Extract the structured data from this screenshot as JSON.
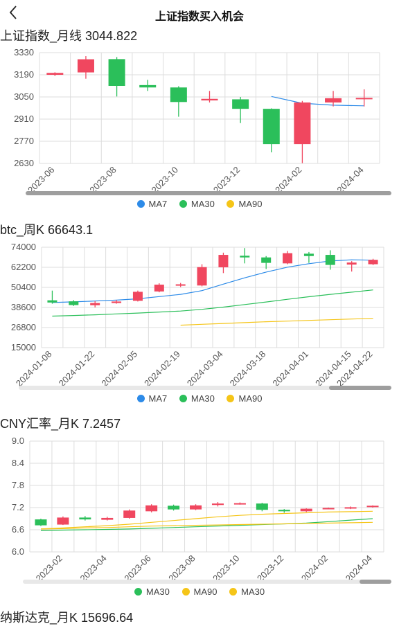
{
  "header": {
    "title": "上证指数买入机会"
  },
  "icons": {
    "back": "chevron-left-icon"
  },
  "colors": {
    "up": "#f0475f",
    "down": "#2bbf5a",
    "ma_blue": "#2d8be8",
    "ma_green": "#2bbf5a",
    "ma_yellow": "#f5c518",
    "grid": "#dddddd",
    "axis_text": "#555555"
  },
  "charts": [
    {
      "title": "上证指数_月线 3044.822",
      "legend": [
        {
          "name": "MA7",
          "color": "#2d8be8"
        },
        {
          "name": "MA30",
          "color": "#2bbf5a"
        },
        {
          "name": "MA90",
          "color": "#f5c518"
        }
      ]
    },
    {
      "title": "btc_周K 66643.1",
      "legend": [
        {
          "name": "MA7",
          "color": "#2d8be8"
        },
        {
          "name": "MA30",
          "color": "#2bbf5a"
        },
        {
          "name": "MA90",
          "color": "#f5c518"
        }
      ]
    },
    {
      "title": "CNY汇率_月K 7.2457",
      "legend": [
        {
          "name": "MA30",
          "color": "#2bbf5a"
        },
        {
          "name": "MA90",
          "color": "#f5c518"
        },
        {
          "name": "MA30",
          "color": "#f5c518"
        }
      ]
    },
    {
      "title": "纳斯达克_月K 15696.64"
    }
  ],
  "chart_data": [
    {
      "type": "candlestick",
      "title": "上证指数_月线 3044.822",
      "ylim": [
        2630,
        3330
      ],
      "yticks": [
        "3330",
        "3190",
        "3050",
        "2910",
        "2770",
        "2630"
      ],
      "xticks": [
        "2023-06",
        "2023-08",
        "2023-10",
        "2023-12",
        "2024-02",
        "2024-04"
      ],
      "candles": [
        {
          "o": 3190,
          "c": 3202,
          "h": 3206,
          "l": 3182
        },
        {
          "o": 3205,
          "c": 3288,
          "h": 3308,
          "l": 3165
        },
        {
          "o": 3289,
          "c": 3120,
          "h": 3302,
          "l": 3053
        },
        {
          "o": 3125,
          "c": 3110,
          "h": 3158,
          "l": 3088
        },
        {
          "o": 3110,
          "c": 3018,
          "h": 3118,
          "l": 2925
        },
        {
          "o": 3028,
          "c": 3038,
          "h": 3088,
          "l": 3015
        },
        {
          "o": 3035,
          "c": 2975,
          "h": 3050,
          "l": 2885
        },
        {
          "o": 2975,
          "c": 2752,
          "h": 2978,
          "l": 2700
        },
        {
          "o": 2752,
          "c": 3015,
          "h": 3025,
          "l": 2632
        },
        {
          "o": 3015,
          "c": 3042,
          "h": 3088,
          "l": 2990
        },
        {
          "o": 3044,
          "c": 3044,
          "h": 3098,
          "l": 2990
        }
      ],
      "series": [
        {
          "name": "MA7",
          "values": [
            null,
            null,
            null,
            null,
            null,
            null,
            null,
            3053,
            3010,
            2998,
            2994
          ]
        }
      ]
    },
    {
      "type": "candlestick",
      "title": "btc_周K 66643.1",
      "ylim": [
        15000,
        74000
      ],
      "yticks": [
        "74000",
        "62200",
        "50400",
        "38600",
        "26800",
        "15000"
      ],
      "xticks": [
        "2024-01-08",
        "2024-01-22",
        "2024-02-05",
        "2024-02-19",
        "2024-03-04",
        "2024-03-18",
        "2024-04-01",
        "2024-04-15",
        "2024-04-22"
      ],
      "candles": [
        {
          "o": 42800,
          "c": 41500,
          "h": 48500,
          "l": 40800
        },
        {
          "o": 42200,
          "c": 40000,
          "h": 42900,
          "l": 39500
        },
        {
          "o": 39900,
          "c": 41200,
          "h": 42300,
          "l": 38600
        },
        {
          "o": 41200,
          "c": 42100,
          "h": 43000,
          "l": 40800
        },
        {
          "o": 42500,
          "c": 47800,
          "h": 48500,
          "l": 42100
        },
        {
          "o": 48000,
          "c": 52000,
          "h": 52800,
          "l": 47500
        },
        {
          "o": 51800,
          "c": 52200,
          "h": 53000,
          "l": 50600
        },
        {
          "o": 51500,
          "c": 62300,
          "h": 64000,
          "l": 51000
        },
        {
          "o": 62200,
          "c": 69500,
          "h": 70800,
          "l": 58800
        },
        {
          "o": 69000,
          "c": 68000,
          "h": 73500,
          "l": 64500
        },
        {
          "o": 68000,
          "c": 64800,
          "h": 68800,
          "l": 61200
        },
        {
          "o": 64500,
          "c": 70500,
          "h": 71800,
          "l": 64000
        },
        {
          "o": 70200,
          "c": 68800,
          "h": 71200,
          "l": 64800
        },
        {
          "o": 69500,
          "c": 63600,
          "h": 72200,
          "l": 60800
        },
        {
          "o": 63800,
          "c": 65000,
          "h": 65800,
          "l": 59700
        },
        {
          "o": 64000,
          "c": 66600,
          "h": 67200,
          "l": 63500
        }
      ],
      "series": [
        {
          "name": "MA7",
          "values": [
            41500,
            41900,
            42400,
            42900,
            43700,
            45000,
            46300,
            48500,
            52300,
            56000,
            59400,
            62300,
            64300,
            65900,
            66600,
            66400
          ]
        },
        {
          "name": "MA30",
          "values": [
            33500,
            33900,
            34300,
            34800,
            35300,
            35900,
            36500,
            37500,
            38800,
            40300,
            41800,
            43400,
            44900,
            46300,
            47600,
            48900
          ]
        },
        {
          "name": "MA90",
          "values": [
            null,
            null,
            null,
            null,
            null,
            null,
            28200,
            28700,
            29200,
            29700,
            30200,
            30600,
            31000,
            31400,
            31800,
            32200
          ]
        }
      ]
    },
    {
      "type": "candlestick",
      "title": "CNY汇率_月K 7.2457",
      "ylim": [
        6.0,
        9.0
      ],
      "yticks": [
        "9.0",
        "8.4",
        "7.8",
        "7.2",
        "6.6",
        "6.0"
      ],
      "xticks": [
        "2023-02",
        "2023-04",
        "2023-06",
        "2023-08",
        "2023-10",
        "2023-12",
        "2024-02",
        "2024-04"
      ],
      "candles": [
        {
          "o": 6.88,
          "c": 6.72,
          "h": 6.9,
          "l": 6.7
        },
        {
          "o": 6.74,
          "c": 6.93,
          "h": 6.96,
          "l": 6.73
        },
        {
          "o": 6.93,
          "c": 6.88,
          "h": 6.97,
          "l": 6.85
        },
        {
          "o": 6.87,
          "c": 6.92,
          "h": 6.95,
          "l": 6.85
        },
        {
          "o": 6.92,
          "c": 7.12,
          "h": 7.15,
          "l": 6.9
        },
        {
          "o": 7.1,
          "c": 7.26,
          "h": 7.29,
          "l": 7.07
        },
        {
          "o": 7.25,
          "c": 7.15,
          "h": 7.28,
          "l": 7.12
        },
        {
          "o": 7.15,
          "c": 7.26,
          "h": 7.29,
          "l": 7.13
        },
        {
          "o": 7.27,
          "c": 7.31,
          "h": 7.35,
          "l": 7.23
        },
        {
          "o": 7.31,
          "c": 7.32,
          "h": 7.34,
          "l": 7.28
        },
        {
          "o": 7.31,
          "c": 7.14,
          "h": 7.33,
          "l": 7.1
        },
        {
          "o": 7.14,
          "c": 7.1,
          "h": 7.16,
          "l": 7.06
        },
        {
          "o": 7.1,
          "c": 7.17,
          "h": 7.18,
          "l": 7.08
        },
        {
          "o": 7.18,
          "c": 7.19,
          "h": 7.2,
          "l": 7.16
        },
        {
          "o": 7.18,
          "c": 7.21,
          "h": 7.23,
          "l": 7.16
        },
        {
          "o": 7.22,
          "c": 7.25,
          "h": 7.26,
          "l": 7.2
        }
      ],
      "series": [
        {
          "name": "MA30",
          "values": [
            6.58,
            6.59,
            6.6,
            6.61,
            6.62,
            6.64,
            6.66,
            6.68,
            6.7,
            6.72,
            6.74,
            6.76,
            6.78,
            6.82,
            6.86,
            6.9
          ]
        },
        {
          "name": "MA90",
          "values": [
            6.62,
            6.63,
            6.65,
            6.66,
            6.68,
            6.7,
            6.71,
            6.72,
            6.73,
            6.74,
            6.75,
            6.76,
            6.77,
            6.78,
            6.79,
            6.8
          ]
        },
        {
          "name": "MA30",
          "values": [
            6.62,
            6.65,
            6.68,
            6.71,
            6.75,
            6.8,
            6.85,
            6.9,
            6.95,
            6.99,
            7.02,
            7.04,
            7.06,
            7.08,
            7.09,
            7.1
          ]
        }
      ]
    }
  ]
}
